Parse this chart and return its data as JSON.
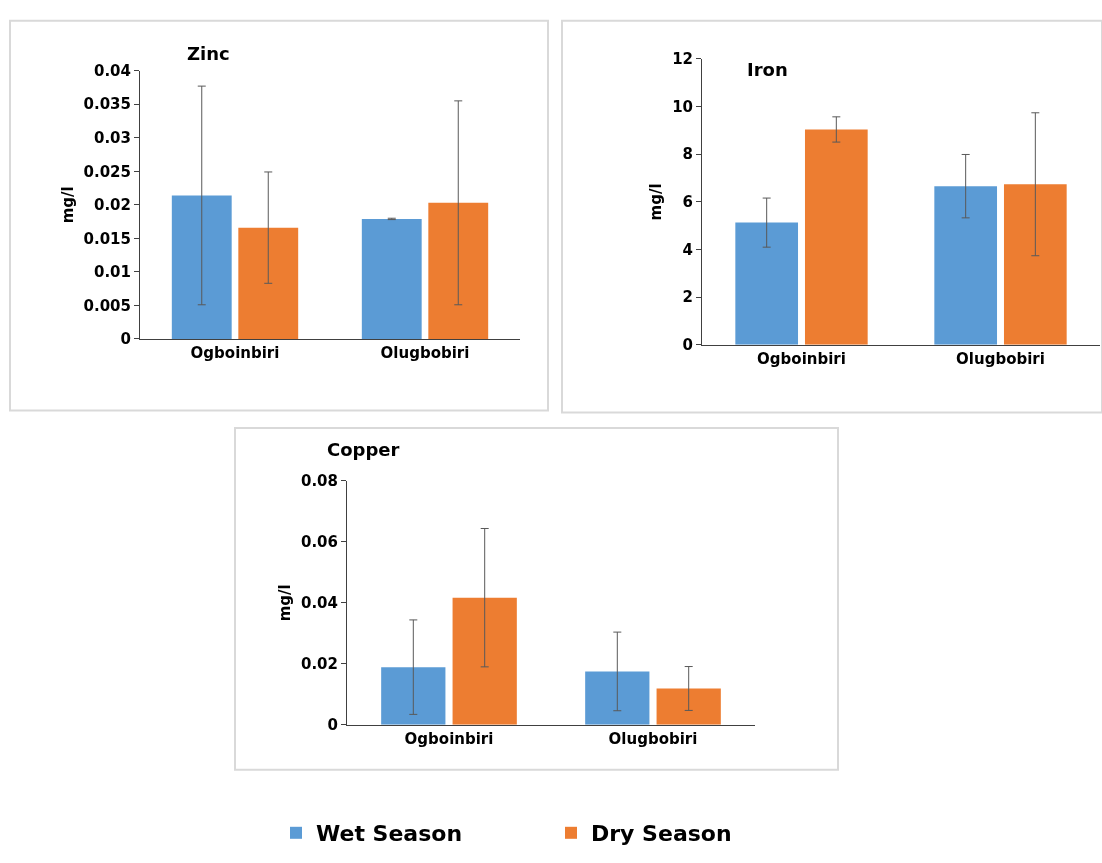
{
  "chart_data": [
    {
      "type": "bar",
      "title": "Zinc",
      "ylabel": "mg/l",
      "categories": [
        "Ogboinbiri",
        "Olugbobiri"
      ],
      "ylim": [
        0,
        0.04
      ],
      "yticks": [
        0,
        0.005,
        0.01,
        0.015,
        0.02,
        0.025,
        0.03,
        0.035,
        0.04
      ],
      "grid": false,
      "legend": "bottom",
      "series": [
        {
          "name": "Wet Season",
          "color": "#5b9bd5",
          "values": [
            0.0214,
            0.0179
          ],
          "errors": [
            0.0163,
            0.0001
          ]
        },
        {
          "name": "Dry Season",
          "color": "#ed7d31",
          "values": [
            0.0166,
            0.0203
          ],
          "errors": [
            0.0083,
            0.0152
          ]
        }
      ]
    },
    {
      "type": "bar",
      "title": "Iron",
      "ylabel": "mg/l",
      "categories": [
        "Ogboinbiri",
        "Olugbobiri"
      ],
      "ylim": [
        0,
        12
      ],
      "yticks": [
        0,
        2,
        4,
        6,
        8,
        10,
        12
      ],
      "grid": false,
      "series": [
        {
          "color": "#5b9bd5",
          "values": [
            5.13,
            6.66
          ],
          "errors": [
            1.03,
            1.33
          ]
        },
        {
          "color": "#ed7d31",
          "values": [
            9.04,
            6.74
          ],
          "errors": [
            0.53,
            3.0
          ]
        }
      ]
    },
    {
      "type": "bar",
      "title": "Copper",
      "ylabel": "mg/l",
      "categories": [
        "Ogboinbiri",
        "Olugbobiri"
      ],
      "ylim": [
        0,
        0.08
      ],
      "yticks": [
        0,
        0.02,
        0.04,
        0.06,
        0.08
      ],
      "grid": false,
      "series": [
        {
          "color": "#5b9bd5",
          "values": [
            0.0189,
            0.0175
          ],
          "errors": [
            0.0155,
            0.0129
          ]
        },
        {
          "color": "#ed7d31",
          "values": [
            0.0417,
            0.0119
          ],
          "errors": [
            0.0227,
            0.0072
          ]
        }
      ]
    }
  ]
}
